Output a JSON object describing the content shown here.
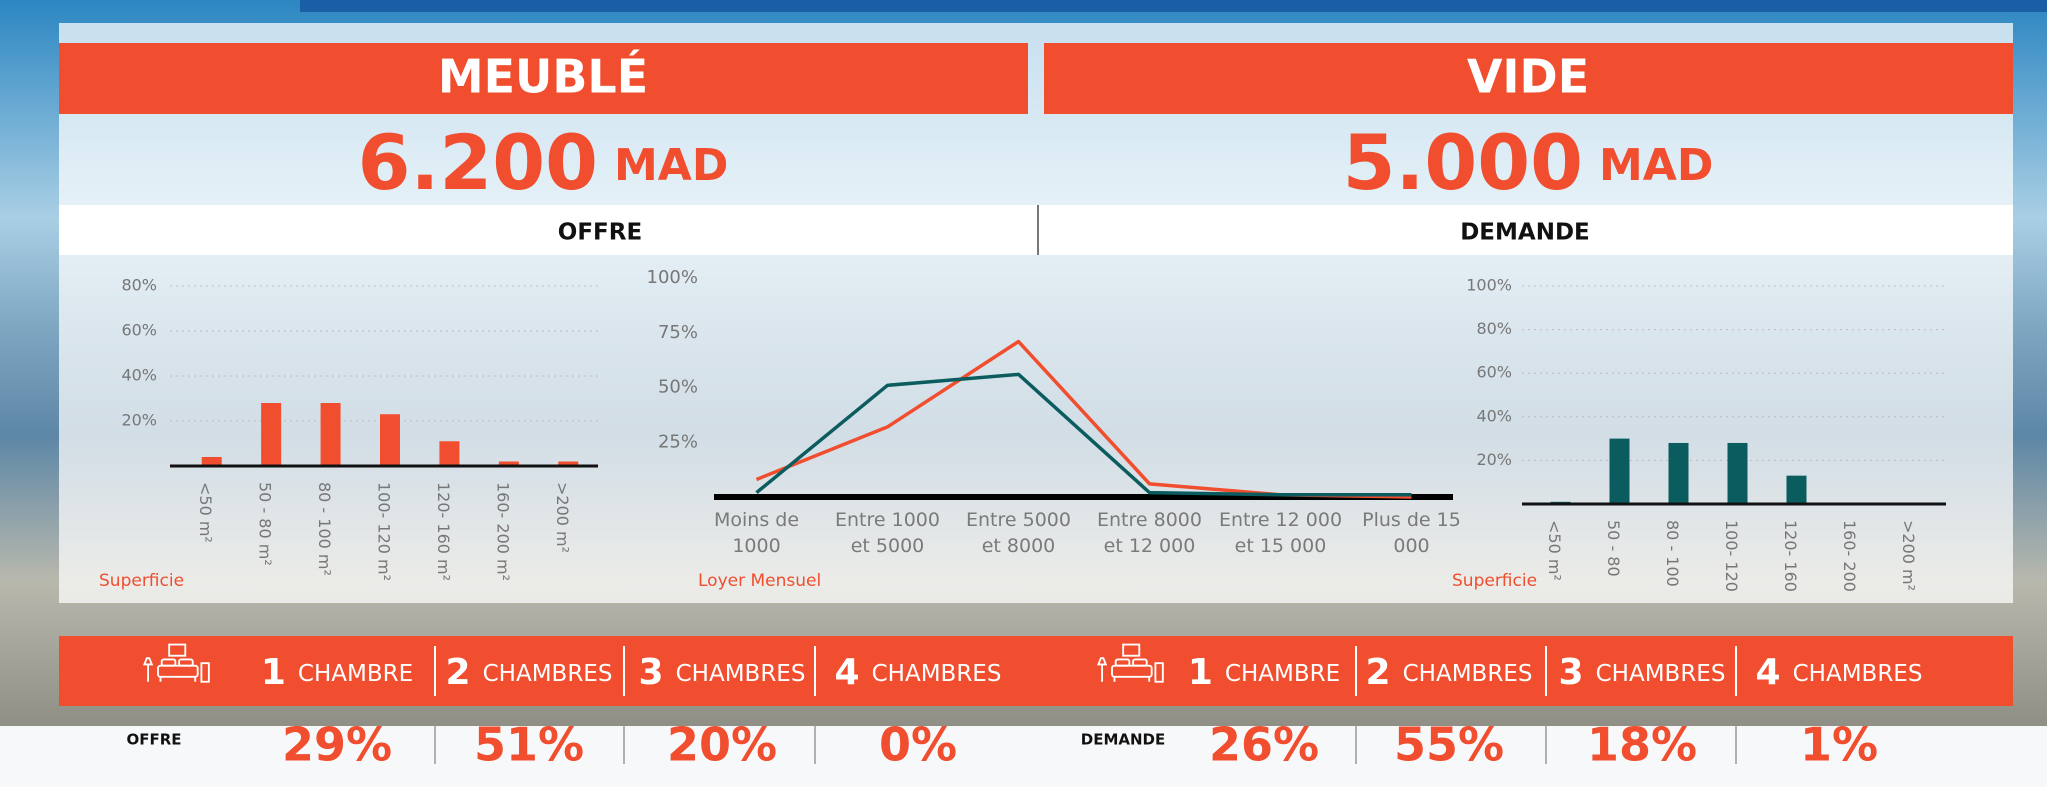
{
  "sections": [
    {
      "title": "MEUBLÉ",
      "price": "6.200",
      "currency": "MAD"
    },
    {
      "title": "VIDE",
      "price": "5.000",
      "currency": "MAD"
    }
  ],
  "subheaders": [
    "OFFRE",
    "DEMANDE"
  ],
  "chart_data": [
    {
      "type": "bar",
      "x_label": "Superficie",
      "categories": [
        "<50 m²",
        "50 - 80 m²",
        "80 - 100 m²",
        "100- 120 m²",
        "120- 160 m²",
        "160- 200 m²",
        ">200 m²"
      ],
      "values": [
        4,
        28,
        28,
        23,
        11,
        2,
        2
      ],
      "color": "#f04e2e",
      "ylim": [
        0,
        80
      ],
      "yticks": [
        {
          "value": 20,
          "label": "20%"
        },
        {
          "value": 40,
          "label": "40%"
        },
        {
          "value": 60,
          "label": "60%"
        },
        {
          "value": 80,
          "label": "80%"
        }
      ],
      "grid": true
    },
    {
      "type": "line",
      "x_label": "Loyer Mensuel",
      "categories": [
        "Moins de 1000",
        "Entre 1000 et 5000",
        "Entre 5000 et 8000",
        "Entre 8000 et 12 000",
        "Entre 12 000 et 15 000",
        "Plus de 15 000"
      ],
      "series": [
        {
          "color": "#f04e2e",
          "values": [
            8,
            32,
            71,
            6,
            1,
            0
          ]
        },
        {
          "color": "#0b5c5f",
          "values": [
            2,
            51,
            56,
            2,
            1,
            1
          ]
        }
      ],
      "ylim": [
        0,
        100
      ],
      "yticks": [
        {
          "value": 25,
          "label": "25%"
        },
        {
          "value": 50,
          "label": "50%"
        },
        {
          "value": 75,
          "label": "75%"
        },
        {
          "value": 100,
          "label": "100%"
        }
      ],
      "grid": false
    },
    {
      "type": "bar",
      "x_label": "Superficie",
      "categories": [
        "<50 m²",
        "50 - 80",
        "80 - 100",
        "100- 120",
        "120- 160",
        "160- 200",
        ">200 m²"
      ],
      "values": [
        1,
        30,
        28,
        28,
        13,
        0.5,
        0.5
      ],
      "color": "#0b5c5f",
      "ylim": [
        0,
        100
      ],
      "yticks": [
        {
          "value": 20,
          "label": "20%"
        },
        {
          "value": 40,
          "label": "40%"
        },
        {
          "value": 60,
          "label": "60%"
        },
        {
          "value": 80,
          "label": "80%"
        },
        {
          "value": 100,
          "label": "100%"
        }
      ],
      "grid": true
    }
  ],
  "rooms": [
    {
      "label": "OFFRE",
      "items": [
        {
          "number": "1",
          "label": "CHAMBRE",
          "share": "29%"
        },
        {
          "number": "2",
          "label": "CHAMBRES",
          "share": "51%"
        },
        {
          "number": "3",
          "label": "CHAMBRES",
          "share": "20%"
        },
        {
          "number": "4",
          "label": "CHAMBRES",
          "share": "0%"
        }
      ]
    },
    {
      "label": "DEMANDE",
      "items": [
        {
          "number": "1",
          "label": "CHAMBRE",
          "share": "26%"
        },
        {
          "number": "2",
          "label": "CHAMBRES",
          "share": "55%"
        },
        {
          "number": "3",
          "label": "CHAMBRES",
          "share": "18%"
        },
        {
          "number": "4",
          "label": "CHAMBRES",
          "share": "1%"
        }
      ]
    }
  ]
}
